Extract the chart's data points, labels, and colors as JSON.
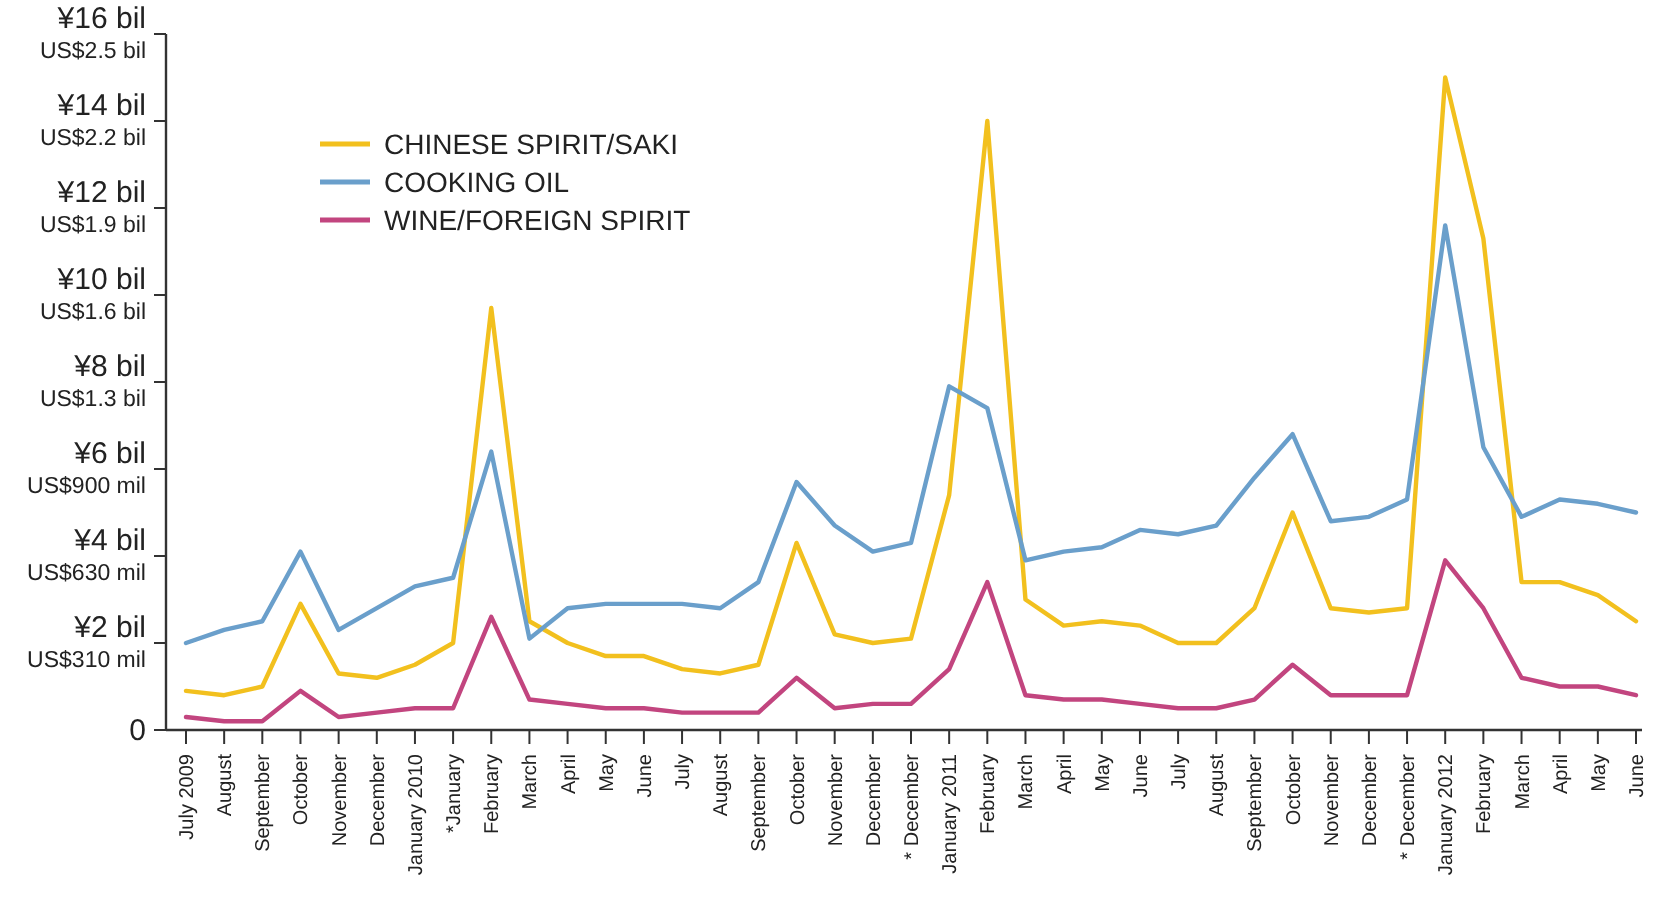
{
  "chart_data": {
    "type": "line",
    "categories": [
      "July 2009",
      "August",
      "September",
      "October",
      "November",
      "December",
      "January 2010",
      "*January",
      "February",
      "March",
      "April",
      "May",
      "June",
      "July",
      "August",
      "September",
      "October",
      "November",
      "December",
      "* December",
      "January 2011",
      "February",
      "March",
      "April",
      "May",
      "June",
      "July",
      "August",
      "September",
      "October",
      "November",
      "December",
      "* December",
      "January 2012",
      "February",
      "March",
      "April",
      "May",
      "June"
    ],
    "series": [
      {
        "name": "CHINESE SPIRIT/SAKI",
        "color": "#f2c01e",
        "values": [
          0.9,
          0.8,
          1.0,
          2.9,
          1.3,
          1.2,
          1.5,
          2.0,
          9.7,
          2.5,
          2.0,
          1.7,
          1.7,
          1.4,
          1.3,
          1.5,
          4.3,
          2.2,
          2.0,
          2.1,
          5.4,
          14.0,
          3.0,
          2.4,
          2.5,
          2.4,
          2.0,
          2.0,
          2.8,
          5.0,
          2.8,
          2.7,
          2.8,
          15.0,
          11.3,
          3.4,
          3.4,
          3.1,
          2.5
        ]
      },
      {
        "name": "COOKING OIL",
        "color": "#6a9fcb",
        "values": [
          2.0,
          2.3,
          2.5,
          4.1,
          2.3,
          2.8,
          3.3,
          3.5,
          6.4,
          2.1,
          2.8,
          2.9,
          2.9,
          2.9,
          2.8,
          3.4,
          5.7,
          4.7,
          4.1,
          4.3,
          7.9,
          7.4,
          3.9,
          4.1,
          4.2,
          4.6,
          4.5,
          4.7,
          5.8,
          6.8,
          4.8,
          4.9,
          5.3,
          11.6,
          6.5,
          4.9,
          5.3,
          5.2,
          5.0
        ]
      },
      {
        "name": "WINE/FOREIGN SPIRIT",
        "color": "#c2457f",
        "values": [
          0.3,
          0.2,
          0.2,
          0.9,
          0.3,
          0.4,
          0.5,
          0.5,
          2.6,
          0.7,
          0.6,
          0.5,
          0.5,
          0.4,
          0.4,
          0.4,
          1.2,
          0.5,
          0.6,
          0.6,
          1.4,
          3.4,
          0.8,
          0.7,
          0.7,
          0.6,
          0.5,
          0.5,
          0.7,
          1.5,
          0.8,
          0.8,
          0.8,
          3.9,
          2.8,
          1.2,
          1.0,
          1.0,
          0.8
        ]
      }
    ],
    "ylim": [
      0,
      16
    ],
    "yticks": [
      0,
      {
        "value": 2,
        "label": "¥2 bil"
      },
      {
        "value": 4,
        "label": "¥4 bil"
      },
      {
        "value": 6,
        "label": "¥6 bil"
      },
      {
        "value": 8,
        "label": "¥8 bil"
      },
      {
        "value": 10,
        "label": "¥10 bil"
      },
      {
        "value": 12,
        "label": "¥12 bil"
      },
      {
        "value": 14,
        "label": "¥14 bil"
      },
      {
        "value": 16,
        "label": "¥16 bil"
      }
    ],
    "annotations": [
      "US$310 mil",
      "US$630 mil",
      "US$900 mil",
      "US$1.3 bil",
      "US$1.6 bil",
      "US$1.9 bil",
      "US$2.2 bil",
      "US$2.5 bil"
    ],
    "legend": "top left",
    "line_style": "solid",
    "grid": false
  }
}
